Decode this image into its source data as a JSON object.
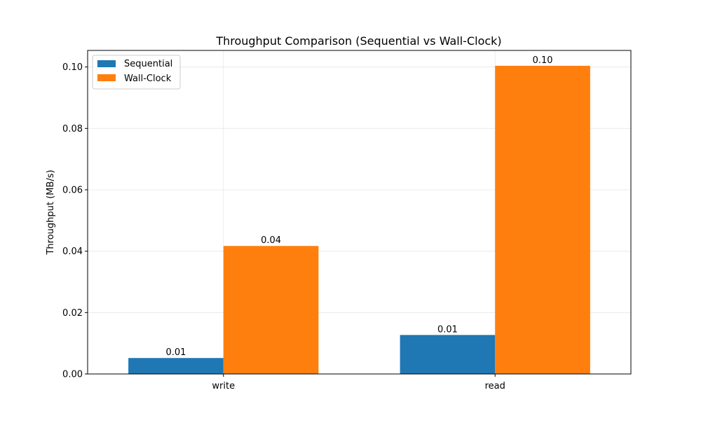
{
  "chart_data": {
    "type": "bar",
    "title": "Throughput Comparison (Sequential vs Wall-Clock)",
    "xlabel": "",
    "ylabel": "Throughput (MB/s)",
    "categories": [
      "write",
      "read"
    ],
    "series": [
      {
        "name": "Sequential",
        "color": "#1f77b4",
        "values": [
          0.0052,
          0.0127
        ],
        "labels": [
          "0.01",
          "0.01"
        ]
      },
      {
        "name": "Wall-Clock",
        "color": "#ff7f0e",
        "values": [
          0.0417,
          0.1004
        ],
        "labels": [
          "0.04",
          "0.10"
        ]
      }
    ],
    "ylim": [
      0,
      0.1054
    ],
    "yticks": [
      0.0,
      0.02,
      0.04,
      0.06,
      0.08,
      0.1
    ],
    "ytick_labels": [
      "0.00",
      "0.02",
      "0.04",
      "0.06",
      "0.08",
      "0.10"
    ],
    "grid": true,
    "legend_position": "top-left"
  }
}
